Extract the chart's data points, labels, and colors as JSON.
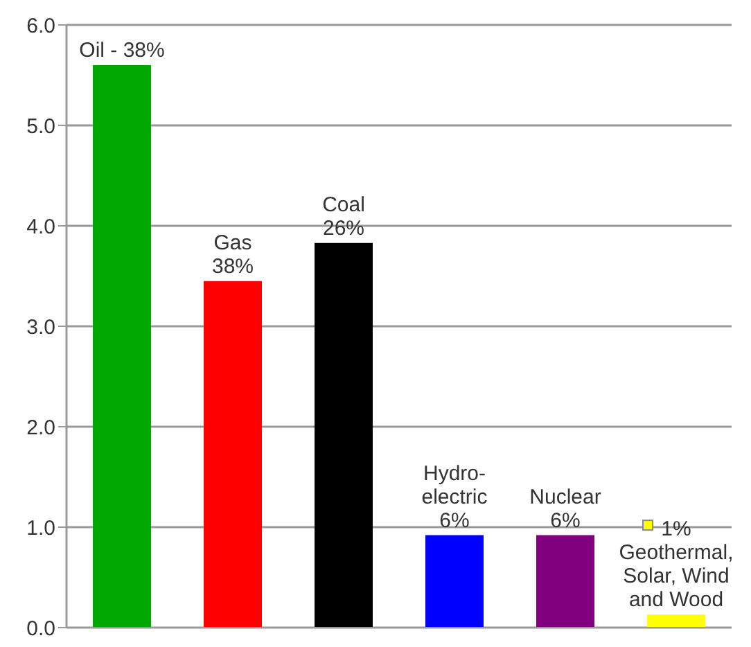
{
  "chart_data": {
    "type": "bar",
    "categories": [
      "Oil - 38%",
      "Gas\n38%",
      "Coal\n26%",
      "Hydro-\nelectric\n6%",
      "Nuclear\n6%",
      "1%\nGeothermal,\nSolar, Wind\nand Wood"
    ],
    "values": [
      5.6,
      3.45,
      3.83,
      0.92,
      0.92,
      0.13
    ],
    "colors": [
      "#00a800",
      "#ff0000",
      "#000000",
      "#0000ff",
      "#800080",
      "#ffff00"
    ],
    "ylim": [
      0,
      6
    ],
    "yticks": [
      {
        "value": 0,
        "label": "0.0"
      },
      {
        "value": 1,
        "label": "1.0"
      },
      {
        "value": 2,
        "label": "2.0"
      },
      {
        "value": 3,
        "label": "3.0"
      },
      {
        "value": 4,
        "label": "4.0"
      },
      {
        "value": 5,
        "label": "5.0"
      },
      {
        "value": 6,
        "label": "6.0"
      }
    ],
    "grid": "y"
  }
}
